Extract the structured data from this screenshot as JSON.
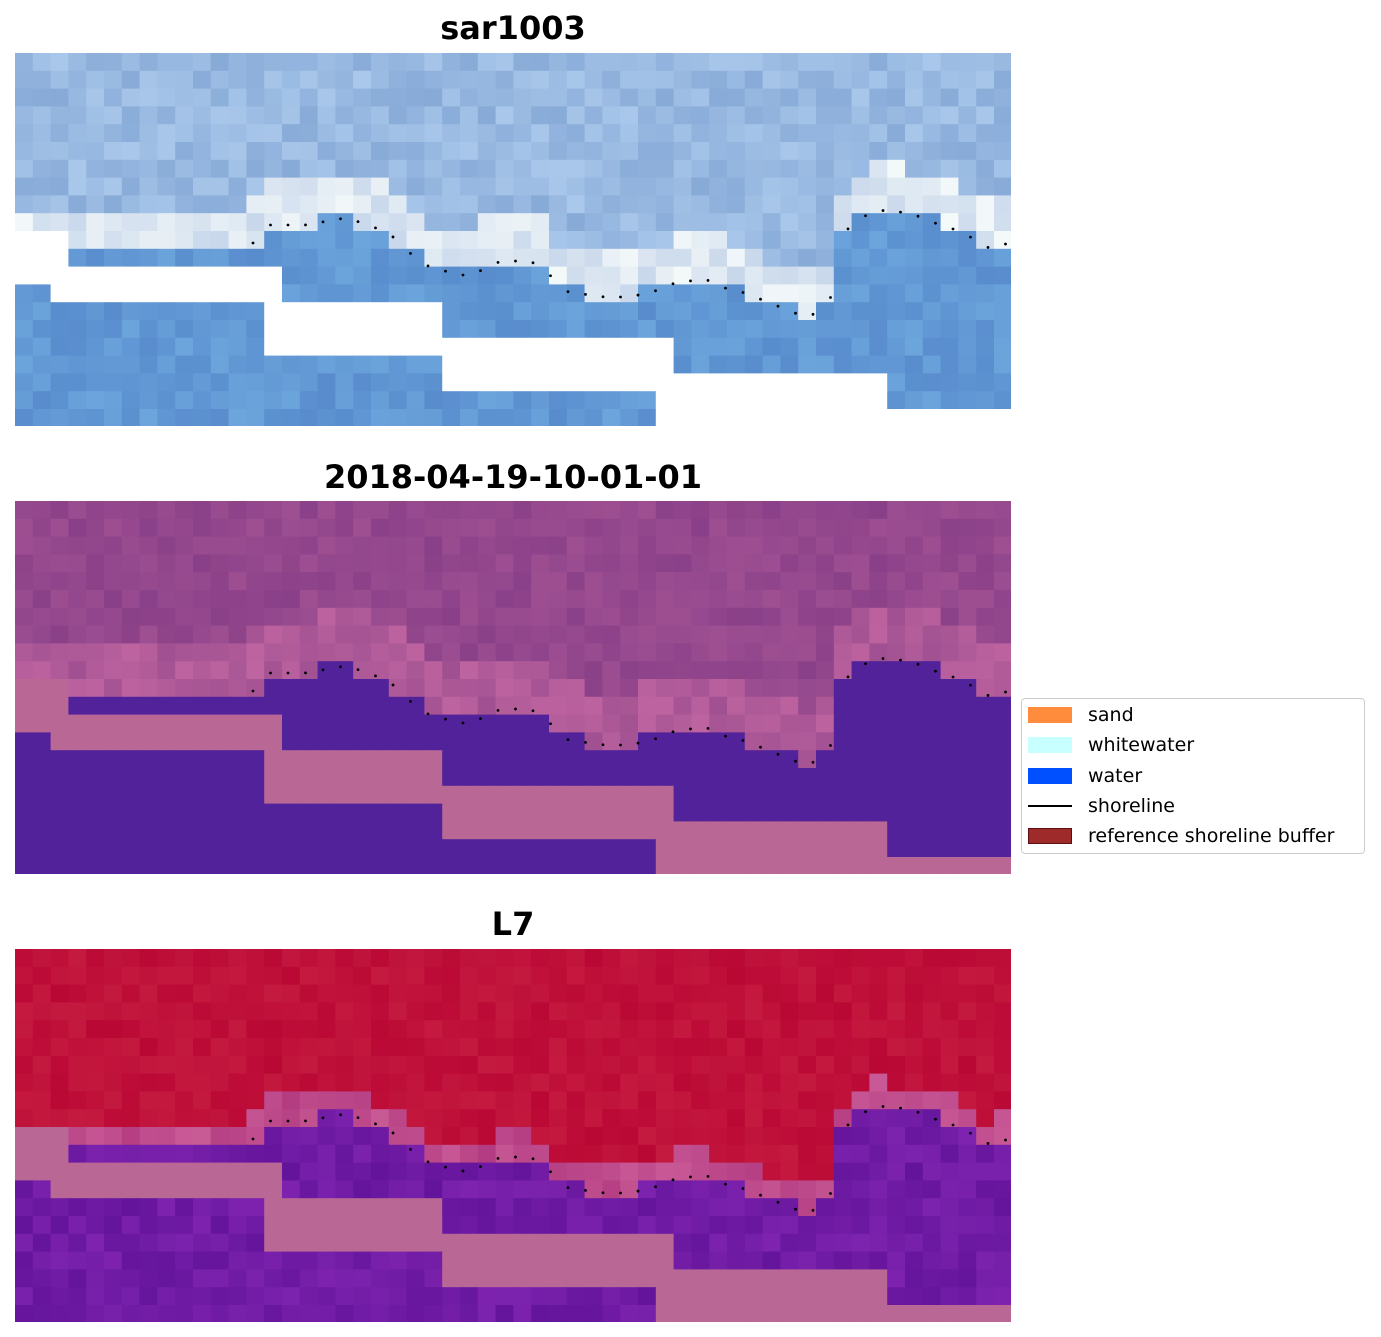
{
  "panels": [
    {
      "title": "sar1003",
      "style": "rgb"
    },
    {
      "title": "2018-04-19-10-01-01",
      "style": "classified"
    },
    {
      "title": "L7",
      "style": "index"
    }
  ],
  "legend": {
    "items": [
      {
        "label": "sand",
        "kind": "patch",
        "color": "#ff8c3c"
      },
      {
        "label": "whitewater",
        "kind": "patch",
        "color": "#c8ffff"
      },
      {
        "label": "water",
        "kind": "patch",
        "color": "#0050ff"
      },
      {
        "label": "shoreline",
        "kind": "line",
        "color": "#000000"
      },
      {
        "label": "reference shoreline buffer",
        "kind": "patch",
        "color": "#9e2a2a"
      }
    ]
  },
  "colors": {
    "nodata_rgb": "#ffffff",
    "mask_pink": "#b96795",
    "class_water": "#52229a",
    "class_land": "#8e4588",
    "index_high": "#bf0f3a",
    "index_low": "#6a1599",
    "shoreline_dots": "#000000"
  }
}
